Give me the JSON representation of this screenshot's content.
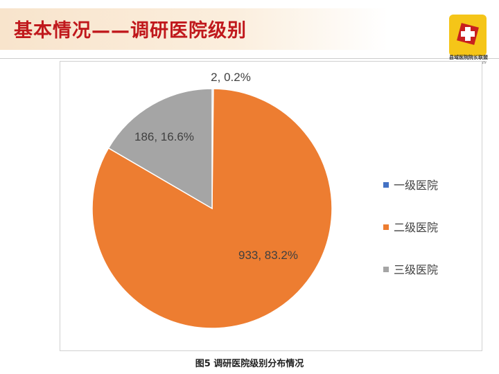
{
  "slide_title": "基本情况——调研医院级别",
  "logo": {
    "text": "县域医院院长联盟",
    "subtext": "ASSOCIATION OF COUNTY"
  },
  "caption": "图5  调研医院级别分布情况",
  "chart_data": {
    "type": "pie",
    "title": "",
    "categories": [
      "一级医院",
      "二级医院",
      "三级医院"
    ],
    "values": [
      2,
      933,
      186
    ],
    "percents": [
      0.2,
      83.2,
      16.6
    ],
    "data_labels": [
      "2, 0.2%",
      "933, 83.2%",
      "186, 16.6%"
    ],
    "colors": [
      "#4472c4",
      "#ed7d31",
      "#a5a5a5"
    ],
    "start_angle": "12 o'clock, clockwise",
    "legend_position": "right"
  }
}
